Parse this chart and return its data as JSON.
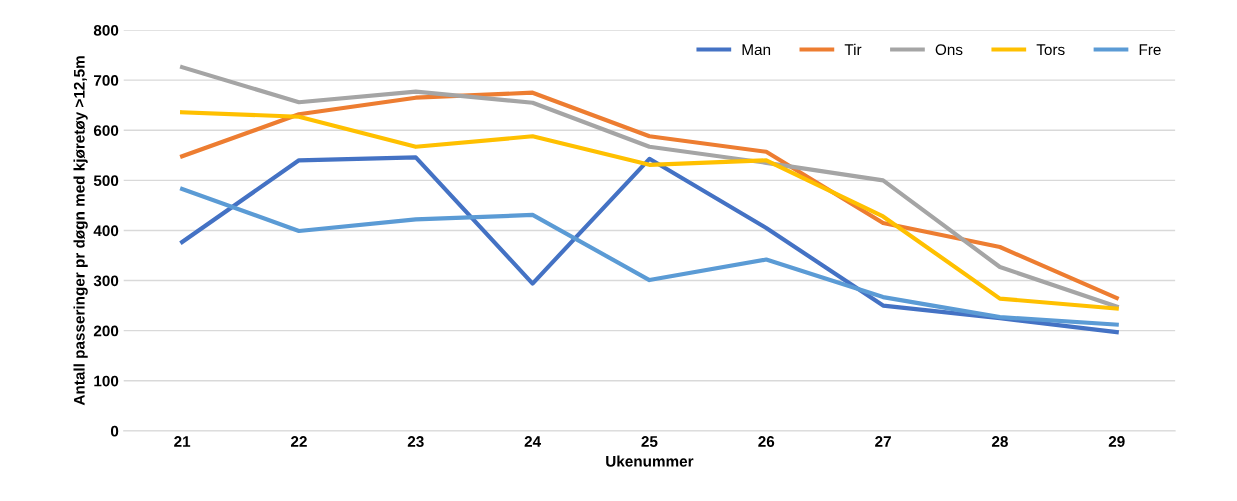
{
  "chart_data": {
    "type": "line",
    "xlabel": "Ukenummer",
    "ylabel": "Antall passeringer pr døgn med kjøretøy >12,5m",
    "categories": [
      "21",
      "22",
      "23",
      "24",
      "25",
      "26",
      "27",
      "28",
      "29"
    ],
    "series": [
      {
        "name": "Man",
        "color": "#4472c4",
        "values": [
          377,
          540,
          546,
          294,
          543,
          405,
          250,
          225,
          197
        ]
      },
      {
        "name": "Tir",
        "color": "#ed7d31",
        "values": [
          548,
          632,
          665,
          675,
          588,
          557,
          415,
          367,
          265
        ]
      },
      {
        "name": "Ons",
        "color": "#a5a5a5",
        "values": [
          726,
          656,
          677,
          655,
          567,
          535,
          500,
          327,
          248
        ]
      },
      {
        "name": "Tors",
        "color": "#ffc000",
        "values": [
          636,
          627,
          567,
          588,
          531,
          540,
          428,
          264,
          244
        ]
      },
      {
        "name": "Fre",
        "color": "#5b9bd5",
        "values": [
          483,
          399,
          422,
          431,
          301,
          342,
          267,
          227,
          212
        ]
      }
    ],
    "ylim": [
      0,
      800
    ],
    "yticks": [
      0,
      100,
      200,
      300,
      400,
      500,
      600,
      700,
      800
    ],
    "grid": "y",
    "legend": "top right",
    "marker": "none",
    "line_style": "solid"
  }
}
